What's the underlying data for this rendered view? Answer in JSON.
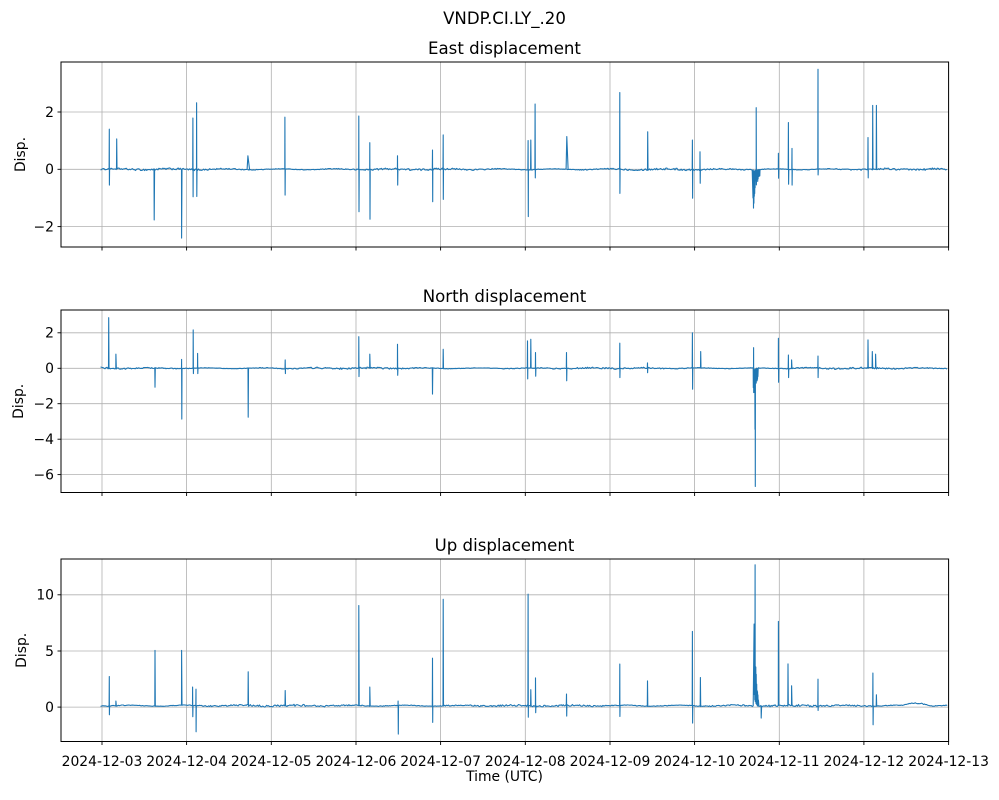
{
  "figure": {
    "suptitle": "VNDP.CI.LY_.20",
    "xlabel": "Time (UTC)",
    "x_tick_labels": [
      "2024-12-03",
      "2024-12-04",
      "2024-12-05",
      "2024-12-06",
      "2024-12-07",
      "2024-12-08",
      "2024-12-09",
      "2024-12-10",
      "2024-12-11",
      "2024-12-12",
      "2024-12-13"
    ],
    "background": "#ffffff",
    "line_color": "#1f77b4",
    "grid_color": "#b0b0b0",
    "text_color": "#000000"
  },
  "chart_data": [
    {
      "type": "line",
      "id": "east",
      "title": "East displacement",
      "ylabel": "Disp.",
      "x_shared": true,
      "t_unit": "days after 2024-12-03T00:00 UTC",
      "ylim": [
        -2.712,
        3.745
      ],
      "y_ticks": [
        {
          "v": 2,
          "label": "2"
        },
        {
          "v": 0,
          "label": "0"
        },
        {
          "v": -2,
          "label": "−2"
        }
      ],
      "color": "#1f77b4",
      "baseline": 0.0,
      "noise_amp": 0.022,
      "spikes": [
        {
          "t": 0.086,
          "up": 1.4,
          "down": -0.55
        },
        {
          "t": 0.174,
          "up": 1.06
        },
        {
          "t": 0.617,
          "down": -1.77
        },
        {
          "t": 0.941,
          "down": -2.4
        },
        {
          "t": 1.074,
          "up": 1.79,
          "down": -0.96
        },
        {
          "t": 1.118,
          "up": 2.32,
          "down": -0.95
        },
        {
          "t": 1.724,
          "up": 0.47,
          "w": 0.01
        },
        {
          "t": 2.161,
          "up": 1.82,
          "down": -0.9
        },
        {
          "t": 3.034,
          "up": 1.86,
          "down": -1.48
        },
        {
          "t": 3.164,
          "up": 0.93,
          "down": -1.74
        },
        {
          "t": 3.491,
          "up": 0.47,
          "down": -0.55
        },
        {
          "t": 3.904,
          "up": 0.67,
          "down": -1.13
        },
        {
          "t": 4.03,
          "up": 1.2,
          "down": -1.05
        },
        {
          "t": 5.033,
          "up": 1.0,
          "down": -1.65
        },
        {
          "t": 5.065,
          "up": 1.02
        },
        {
          "t": 5.116,
          "up": 2.28,
          "down": -0.3
        },
        {
          "t": 5.49,
          "up": 1.14,
          "w": 0.008
        },
        {
          "t": 6.116,
          "up": 2.68,
          "down": -0.84
        },
        {
          "t": 6.446,
          "up": 1.31
        },
        {
          "t": 6.974,
          "up": 1.02,
          "down": -1.01
        },
        {
          "t": 7.064,
          "up": 0.61,
          "down": -0.49
        },
        {
          "t": 7.99,
          "up": 0.56,
          "down": -0.31
        },
        {
          "t": 8.108,
          "up": 1.63,
          "down": -0.52
        },
        {
          "t": 8.15,
          "up": 0.73,
          "down": -0.55
        },
        {
          "t": 8.457,
          "up": 3.49,
          "down": -0.2
        },
        {
          "t": 9.048,
          "up": 1.11,
          "down": -0.3
        },
        {
          "t": 9.103,
          "up": 2.23
        },
        {
          "t": 9.147,
          "up": 2.23
        }
      ],
      "bursts": [
        {
          "t0": 7.69,
          "t1": 7.775,
          "dir": -1,
          "peak": 1.6,
          "tau": 0.05,
          "floor": 0.3,
          "needles": [
            {
              "dt": 0.038,
              "v": 2.15
            }
          ]
        }
      ],
      "bumps": []
    },
    {
      "type": "line",
      "id": "north",
      "title": "North displacement",
      "ylabel": "Disp.",
      "x_shared": true,
      "t_unit": "days after 2024-12-03T00:00 UTC",
      "ylim": [
        -7.007,
        3.285
      ],
      "y_ticks": [
        {
          "v": 2,
          "label": "2"
        },
        {
          "v": 0,
          "label": "0"
        },
        {
          "v": -2,
          "label": "−2"
        },
        {
          "v": -4,
          "label": "−4"
        },
        {
          "v": -6,
          "label": "−6"
        }
      ],
      "color": "#1f77b4",
      "baseline": 0.0,
      "noise_amp": 0.03,
      "spikes": [
        {
          "t": 0.079,
          "up": 2.85
        },
        {
          "t": 0.165,
          "up": 0.79
        },
        {
          "t": 0.626,
          "down": -1.07
        },
        {
          "t": 0.941,
          "up": 0.5,
          "down": -2.87
        },
        {
          "t": 1.078,
          "up": 2.16,
          "down": -0.3
        },
        {
          "t": 1.13,
          "up": 0.84,
          "down": -0.3
        },
        {
          "t": 1.727,
          "down": -2.76
        },
        {
          "t": 2.164,
          "up": 0.47,
          "down": -0.3
        },
        {
          "t": 3.034,
          "up": 1.78,
          "down": -0.47
        },
        {
          "t": 3.164,
          "up": 0.79
        },
        {
          "t": 3.491,
          "up": 1.35,
          "down": -0.4
        },
        {
          "t": 3.904,
          "down": -1.46
        },
        {
          "t": 4.03,
          "up": 1.07
        },
        {
          "t": 5.026,
          "up": 1.54,
          "down": -0.6
        },
        {
          "t": 5.065,
          "up": 1.63
        },
        {
          "t": 5.121,
          "up": 0.88,
          "down": -0.45
        },
        {
          "t": 5.487,
          "up": 0.88,
          "down": -0.71
        },
        {
          "t": 6.116,
          "up": 1.41,
          "down": -0.53
        },
        {
          "t": 6.443,
          "up": 0.3,
          "down": -0.25
        },
        {
          "t": 6.974,
          "up": 2.0,
          "down": -1.18
        },
        {
          "t": 7.072,
          "up": 0.94
        },
        {
          "t": 7.99,
          "up": 1.69,
          "down": -0.79
        },
        {
          "t": 8.108,
          "up": 0.75,
          "down": -0.53
        },
        {
          "t": 8.146,
          "up": 0.47
        },
        {
          "t": 8.457,
          "up": 0.69,
          "down": -0.53
        },
        {
          "t": 9.048,
          "up": 1.6
        },
        {
          "t": 9.099,
          "up": 0.94
        },
        {
          "t": 9.138,
          "up": 0.79
        }
      ],
      "bursts": [
        {
          "t0": 7.693,
          "t1": 7.752,
          "dir": -1,
          "peak": 2.3,
          "tau": 0.04,
          "floor": 0.35,
          "needles": [
            {
              "dt": 0.004,
              "v": 1.16
            },
            {
              "dt": 0.02,
              "v": -3.45
            },
            {
              "dt": 0.024,
              "v": -6.67
            }
          ]
        }
      ],
      "bumps": []
    },
    {
      "type": "line",
      "id": "up",
      "title": "Up displacement",
      "ylabel": "Disp.",
      "x_shared": true,
      "t_unit": "days after 2024-12-03T00:00 UTC",
      "ylim": [
        -3.06,
        13.19
      ],
      "y_ticks": [
        {
          "v": 10,
          "label": "10"
        },
        {
          "v": 5,
          "label": "5"
        },
        {
          "v": 0,
          "label": "0"
        }
      ],
      "color": "#1f77b4",
      "baseline": 0.13,
      "noise_amp": 0.06,
      "spikes": [
        {
          "t": 0.086,
          "up": 2.73,
          "down": -0.68
        },
        {
          "t": 0.165,
          "up": 0.55
        },
        {
          "t": 0.626,
          "up": 5.05
        },
        {
          "t": 0.941,
          "up": 5.05
        },
        {
          "t": 1.071,
          "up": 1.78,
          "down": -0.85
        },
        {
          "t": 1.11,
          "up": 1.6,
          "down": -2.2
        },
        {
          "t": 1.727,
          "up": 3.15
        },
        {
          "t": 2.164,
          "up": 1.48
        },
        {
          "t": 3.034,
          "up": 9.05
        },
        {
          "t": 3.164,
          "up": 1.78
        },
        {
          "t": 3.498,
          "up": 0.55,
          "down": -2.4
        },
        {
          "t": 3.904,
          "up": 4.36,
          "down": -1.36
        },
        {
          "t": 4.03,
          "up": 9.6
        },
        {
          "t": 5.033,
          "up": 10.06,
          "down": -0.9
        },
        {
          "t": 5.065,
          "up": 1.55
        },
        {
          "t": 5.121,
          "up": 2.6,
          "down": -0.5
        },
        {
          "t": 5.487,
          "up": 1.16,
          "down": -0.8
        },
        {
          "t": 6.116,
          "up": 3.83,
          "down": -0.83
        },
        {
          "t": 6.443,
          "up": 2.34
        },
        {
          "t": 6.974,
          "up": 6.74,
          "down": -1.42
        },
        {
          "t": 7.068,
          "up": 2.64
        },
        {
          "t": 7.787,
          "down": -0.98
        },
        {
          "t": 7.99,
          "up": 7.63
        },
        {
          "t": 8.103,
          "up": 3.85
        },
        {
          "t": 8.146,
          "up": 1.9
        },
        {
          "t": 8.457,
          "up": 2.49,
          "down": -0.3
        },
        {
          "t": 9.106,
          "up": 3.03,
          "down": -1.57
        },
        {
          "t": 9.147,
          "up": 1.1
        }
      ],
      "bursts": [
        {
          "t0": 7.703,
          "t1": 7.755,
          "dir": 1,
          "peak": 12.3,
          "tau": 0.02,
          "floor": 0.35,
          "needles": [
            {
              "dt": 0.012,
              "v": 12.67
            }
          ]
        }
      ],
      "bumps": [
        {
          "t0": 9.45,
          "t1": 9.8,
          "amp": 0.28
        }
      ]
    }
  ]
}
